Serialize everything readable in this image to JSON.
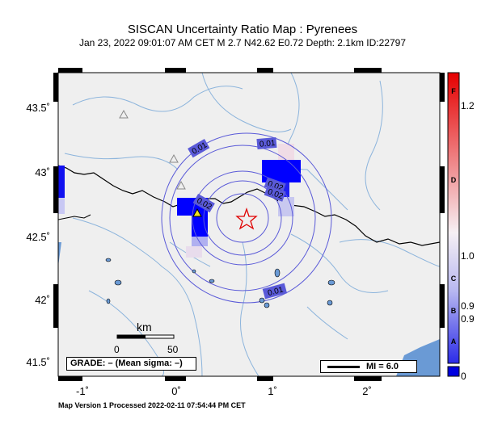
{
  "map": {
    "title": "SISCAN Uncertainty Ratio Map : Pyrenees",
    "subtitle": "Jan 23, 2022 09:01:07 AM CET   M 2.7   N42.62 E0.72   Depth: 2.1km   ID:22797",
    "lat_labels": [
      "43.5˚",
      "43˚",
      "42.5˚",
      "42˚",
      "41.5˚"
    ],
    "lon_labels": [
      "-1˚",
      "0˚",
      "1˚",
      "2˚"
    ],
    "contour_labels": [
      "0.01",
      "0.01",
      "0.02",
      "0.02",
      "0.02",
      "0.01"
    ],
    "scale_bar": {
      "unit": "km",
      "tick_0": "0",
      "tick_50": "50"
    },
    "grade_box": "GRADE: – (Mean sigma: –)",
    "mi_box": "MI = 6.0",
    "footer": "Map Version 1 Processed 2022-02-11 07:54:44 PM CET",
    "epicenter_icon": "star-icon",
    "station_icons": [
      "triangle-icon",
      "triangle-icon",
      "triangle-icon",
      "triangle-icon"
    ]
  },
  "colorbar": {
    "letters": [
      "F",
      "D",
      "C",
      "B",
      "A"
    ],
    "values": [
      "1.2",
      "1.0",
      "0.9",
      "0.9",
      "0"
    ],
    "colors": {
      "top": "#e00000",
      "mid": "#f5f0f5",
      "bottom": "#0000e0"
    }
  },
  "colors": {
    "land": "#efefef",
    "sea": "#6a9ad5",
    "rivers": "#8cb4dc",
    "contours": "#5a5ad8",
    "high_cells": "#0000ff",
    "epicenter": "#e00000"
  }
}
